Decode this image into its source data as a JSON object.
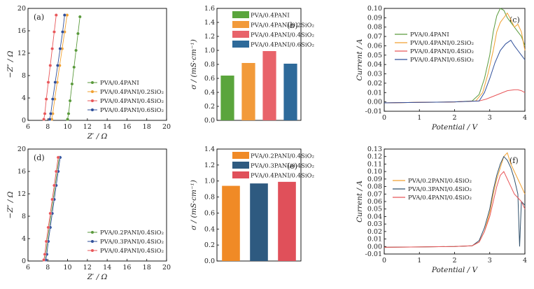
{
  "chart_data": [
    {
      "panel": "(a)",
      "type": "scatter",
      "xlabel": "Z′ / Ω",
      "ylabel": "−Z″ / Ω",
      "xlim": [
        6,
        20
      ],
      "ylim": [
        0,
        20
      ],
      "xticks": [
        "6",
        "8",
        "10",
        "12",
        "14",
        "16",
        "18",
        "20"
      ],
      "yticks": [
        "0",
        "4",
        "8",
        "12",
        "16",
        "20"
      ],
      "legend_position": "lower-right",
      "series": [
        {
          "name": "PVA/0.4PANI",
          "color": "#5a9a3c",
          "x": [
            10.0,
            10.1,
            10.25,
            10.45,
            10.65,
            10.85,
            11.05,
            11.25
          ],
          "y": [
            0.2,
            1.2,
            3.5,
            6.5,
            9.5,
            12.5,
            15.5,
            18.5
          ]
        },
        {
          "name": "PVA/0.4PANI/0.2SiO₂",
          "color": "#f0a030",
          "x": [
            8.4,
            8.5,
            8.7,
            8.95,
            9.2,
            9.45,
            9.7,
            9.95
          ],
          "y": [
            0.2,
            1.2,
            3.8,
            6.8,
            9.8,
            12.8,
            15.8,
            18.8
          ]
        },
        {
          "name": "PVA/0.4PANI/0.4SiO₂",
          "color": "#e8575a",
          "x": [
            7.6,
            7.7,
            7.85,
            8.05,
            8.25,
            8.45,
            8.65,
            8.85
          ],
          "y": [
            0.2,
            1.2,
            3.8,
            6.8,
            9.8,
            12.8,
            15.8,
            18.8
          ]
        },
        {
          "name": "PVA/0.4PANI/0.6SiO₂",
          "color": "#2f4f9a",
          "x": [
            8.2,
            8.3,
            8.5,
            8.75,
            9.0,
            9.25,
            9.5,
            9.7
          ],
          "y": [
            0.2,
            1.2,
            3.8,
            6.8,
            9.8,
            12.8,
            15.8,
            18.8
          ]
        }
      ]
    },
    {
      "panel": "(b)",
      "type": "bar",
      "ylabel": "σ / (mS·cm⁻¹)",
      "ylim": [
        0,
        1.6
      ],
      "yticks": [
        "0.0",
        "0.2",
        "0.4",
        "0.6",
        "0.8",
        "1.0",
        "1.2",
        "1.4",
        "1.6"
      ],
      "legend_position": "top-left",
      "categories": [
        "PVA/0.4PANI",
        "PVA/0.4PANI/0.2SiO₂",
        "PVA/0.4PANI/0.4SiO₂",
        "PVA/0.4PANI/0.6SiO₂"
      ],
      "values": [
        0.64,
        0.82,
        0.99,
        0.81
      ],
      "colors": [
        "#5aa53c",
        "#f29a3a",
        "#e8636a",
        "#2e6a9a"
      ]
    },
    {
      "panel": "(c)",
      "type": "line",
      "xlabel": "Potential / V",
      "ylabel": "Current / A",
      "xlim": [
        0,
        4
      ],
      "ylim": [
        -0.01,
        0.1
      ],
      "xticks": [
        "0",
        "1",
        "2",
        "3",
        "4"
      ],
      "yticks": [
        "-0.01",
        "0.00",
        "0.01",
        "0.02",
        "0.03",
        "0.04",
        "0.05",
        "0.06",
        "0.07",
        "0.08",
        "0.09",
        "0.10"
      ],
      "legend_position": "center-right",
      "series": [
        {
          "name": "PVA/0.4PANI",
          "color": "#5a9a3c",
          "x": [
            0,
            1,
            2,
            2.5,
            2.7,
            2.85,
            3.0,
            3.1,
            3.2,
            3.3,
            3.4,
            3.5,
            3.6,
            3.7,
            3.8,
            3.9,
            4.0
          ],
          "y": [
            -0.001,
            -0.0005,
            0.0,
            0.001,
            0.008,
            0.025,
            0.05,
            0.075,
            0.092,
            0.1,
            0.098,
            0.09,
            0.085,
            0.08,
            0.075,
            0.07,
            0.06
          ]
        },
        {
          "name": "PVA/0.4PANI/0.2SiO₂",
          "color": "#f0a030",
          "x": [
            0,
            1,
            2,
            2.6,
            2.8,
            2.95,
            3.1,
            3.2,
            3.3,
            3.4,
            3.5,
            3.6,
            3.7,
            3.8,
            3.9,
            4.0
          ],
          "y": [
            -0.001,
            -0.0005,
            0.0,
            0.001,
            0.01,
            0.03,
            0.055,
            0.075,
            0.085,
            0.09,
            0.095,
            0.088,
            0.08,
            0.083,
            0.075,
            0.055
          ]
        },
        {
          "name": "PVA/0.4PANI/0.4SiO₂",
          "color": "#e8575a",
          "x": [
            0,
            1,
            2,
            2.7,
            2.9,
            3.1,
            3.3,
            3.5,
            3.7,
            3.8,
            3.9,
            4.0
          ],
          "y": [
            -0.001,
            -0.0005,
            0.0,
            0.001,
            0.003,
            0.006,
            0.009,
            0.012,
            0.013,
            0.013,
            0.012,
            0.01
          ]
        },
        {
          "name": "PVA/0.4PANI/0.6SiO₂",
          "color": "#2f4f9a",
          "x": [
            0,
            1,
            2,
            2.7,
            2.85,
            3.0,
            3.15,
            3.3,
            3.45,
            3.6,
            3.7,
            3.8,
            3.9,
            4.0
          ],
          "y": [
            -0.001,
            -0.0005,
            0.0,
            0.001,
            0.01,
            0.025,
            0.042,
            0.055,
            0.062,
            0.066,
            0.06,
            0.055,
            0.05,
            0.045
          ]
        }
      ]
    },
    {
      "panel": "(d)",
      "type": "scatter",
      "xlabel": "Z′ / Ω",
      "ylabel": "−Z″ / Ω",
      "xlim": [
        6,
        20
      ],
      "ylim": [
        0,
        20
      ],
      "xticks": [
        "6",
        "8",
        "10",
        "12",
        "14",
        "16",
        "18",
        "20"
      ],
      "yticks": [
        "0",
        "4",
        "8",
        "12",
        "16",
        "20"
      ],
      "legend_position": "lower-right",
      "series": [
        {
          "name": "PVA/0.2PANI/0.4SiO₂",
          "color": "#5a9a3c",
          "x": [
            7.7,
            7.8,
            7.95,
            8.15,
            8.35,
            8.55,
            8.75,
            8.95,
            9.15
          ],
          "y": [
            0.2,
            1.2,
            3.5,
            6.0,
            8.5,
            11.0,
            13.5,
            16.0,
            18.5
          ]
        },
        {
          "name": "PVA/0.3PANI/0.4SiO₂",
          "color": "#2f4f9a",
          "x": [
            7.8,
            7.9,
            8.05,
            8.25,
            8.45,
            8.65,
            8.85,
            9.05,
            9.25
          ],
          "y": [
            0.2,
            1.2,
            3.5,
            6.0,
            8.5,
            11.0,
            13.5,
            16.0,
            18.5
          ]
        },
        {
          "name": "PVA/0.4PANI/0.4SiO₂",
          "color": "#e8575a",
          "x": [
            7.6,
            7.7,
            7.85,
            8.05,
            8.25,
            8.45,
            8.65,
            8.85,
            9.05
          ],
          "y": [
            0.2,
            1.2,
            3.5,
            6.0,
            8.5,
            11.0,
            13.5,
            16.0,
            18.5
          ]
        }
      ]
    },
    {
      "panel": "(e)",
      "type": "bar",
      "ylabel": "σ / (mS·cm⁻¹)",
      "ylim": [
        0,
        1.4
      ],
      "yticks": [
        "0.0",
        "0.2",
        "0.4",
        "0.6",
        "0.8",
        "1.0",
        "1.2",
        "1.4"
      ],
      "legend_position": "top-left",
      "categories": [
        "PVA/0.2PANI/0.4SiO₂",
        "PVA/0.3PANI/0.4SiO₂",
        "PVA/0.4PANI/0.4SiO₂"
      ],
      "values": [
        0.94,
        0.97,
        0.99
      ],
      "colors": [
        "#f08a26",
        "#2e5a80",
        "#e0505a"
      ]
    },
    {
      "panel": "(f)",
      "type": "line",
      "xlabel": "Potential / V",
      "ylabel": "Current / A",
      "xlim": [
        0,
        4
      ],
      "ylim": [
        -0.01,
        0.13
      ],
      "xticks": [
        "0",
        "1",
        "2",
        "3",
        "4"
      ],
      "yticks": [
        "-0.01",
        "0.00",
        "0.01",
        "0.02",
        "0.03",
        "0.04",
        "0.05",
        "0.06",
        "0.07",
        "0.08",
        "0.09",
        "0.10",
        "0.11",
        "0.12",
        "0.13"
      ],
      "legend_position": "center-left",
      "series": [
        {
          "name": "PVA/0.2PANI/0.4SiO₂",
          "color": "#f0a030",
          "x": [
            0,
            1,
            2,
            2.5,
            2.7,
            2.85,
            3.0,
            3.1,
            3.2,
            3.3,
            3.4,
            3.5,
            3.6,
            3.7,
            3.8,
            3.9,
            4.0
          ],
          "y": [
            -0.001,
            -0.0005,
            0.0,
            0.001,
            0.006,
            0.02,
            0.045,
            0.07,
            0.09,
            0.105,
            0.12,
            0.125,
            0.11,
            0.1,
            0.09,
            0.08,
            0.07
          ]
        },
        {
          "name": "PVA/0.3PANI/0.4SiO₂",
          "color": "#2f4f6a",
          "x": [
            0,
            1,
            2,
            2.5,
            2.7,
            2.85,
            3.0,
            3.1,
            3.2,
            3.3,
            3.4,
            3.5,
            3.6,
            3.7,
            3.8,
            3.85,
            3.9,
            4.0
          ],
          "y": [
            -0.001,
            -0.0005,
            0.0,
            0.001,
            0.008,
            0.025,
            0.05,
            0.075,
            0.095,
            0.11,
            0.12,
            0.115,
            0.105,
            0.09,
            0.07,
            0.0,
            0.06,
            0.055
          ]
        },
        {
          "name": "PVA/0.4PANI/0.4SiO₂",
          "color": "#e8575a",
          "x": [
            0,
            1,
            2,
            2.5,
            2.7,
            2.85,
            3.0,
            3.1,
            3.2,
            3.3,
            3.4,
            3.5,
            3.6,
            3.7,
            3.8,
            3.9,
            4.0
          ],
          "y": [
            -0.001,
            -0.0005,
            0.0,
            0.001,
            0.006,
            0.02,
            0.04,
            0.06,
            0.08,
            0.095,
            0.1,
            0.09,
            0.08,
            0.07,
            0.065,
            0.06,
            0.05
          ]
        }
      ]
    }
  ]
}
